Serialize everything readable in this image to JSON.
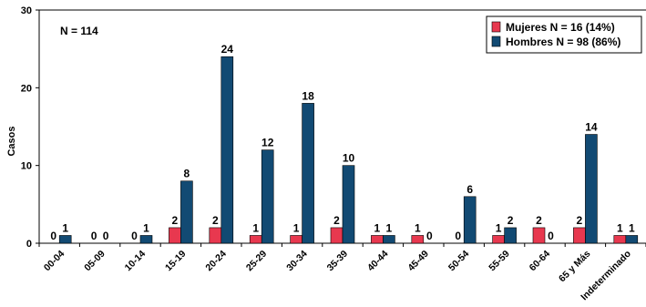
{
  "chart_data": {
    "type": "bar",
    "title": "",
    "xlabel": "",
    "ylabel": "Casos",
    "ylim": [
      0,
      30
    ],
    "yticks": [
      0,
      10,
      20,
      30
    ],
    "grid": false,
    "legend_position": "top-right",
    "annotation": "N = 114",
    "categories": [
      "00-04",
      "05-09",
      "10-14",
      "15-19",
      "20-24",
      "25-29",
      "30-34",
      "35-39",
      "40-44",
      "45-49",
      "50-54",
      "55-59",
      "60-64",
      "65 y Más",
      "Indeterminado"
    ],
    "series": [
      {
        "name": "Mujeres N = 16 (14%)",
        "color": "#e8384f",
        "values": [
          0,
          0,
          0,
          2,
          2,
          1,
          1,
          2,
          1,
          1,
          0,
          1,
          2,
          2,
          1
        ]
      },
      {
        "name": "Hombres N = 98 (86%)",
        "color": "#124a73",
        "values": [
          1,
          0,
          1,
          8,
          24,
          12,
          18,
          10,
          1,
          0,
          6,
          2,
          0,
          14,
          1
        ]
      }
    ]
  }
}
